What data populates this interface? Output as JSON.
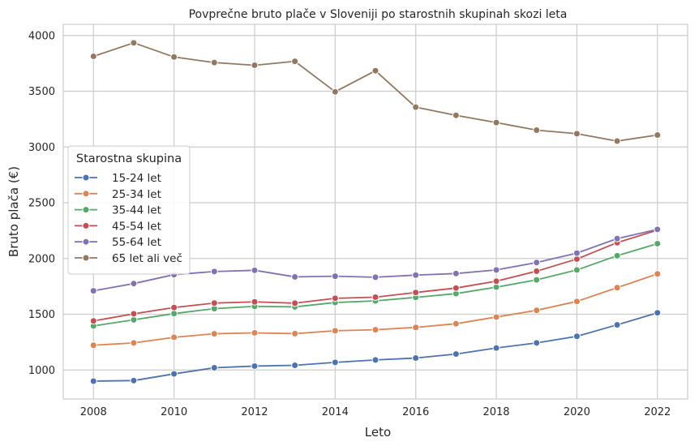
{
  "chart_data": {
    "type": "line",
    "title": "Povprečne bruto plače v Sloveniji po starostnih skupinah skozi leta",
    "xlabel": "Leto",
    "ylabel": "Bruto plača (€)",
    "xlim": [
      2007.25,
      2022.75
    ],
    "ylim": [
      740,
      4100
    ],
    "x_ticks": [
      2008,
      2010,
      2012,
      2014,
      2016,
      2018,
      2020,
      2022
    ],
    "y_ticks": [
      1000,
      1500,
      2000,
      2500,
      3000,
      3500,
      4000
    ],
    "grid": true,
    "legend": {
      "title": "Starostna skupina",
      "placement": "center-left"
    },
    "x": [
      2008,
      2009,
      2010,
      2011,
      2012,
      2013,
      2014,
      2015,
      2016,
      2017,
      2018,
      2019,
      2020,
      2021,
      2022
    ],
    "series": [
      {
        "name": "15-24 let",
        "color": "#4c72b0",
        "values": [
          900,
          905,
          965,
          1020,
          1035,
          1042,
          1068,
          1090,
          1107,
          1143,
          1197,
          1243,
          1302,
          1405,
          1513
        ]
      },
      {
        "name": "25-34 let",
        "color": "#dd8452",
        "values": [
          1222,
          1243,
          1293,
          1325,
          1333,
          1326,
          1352,
          1361,
          1382,
          1415,
          1475,
          1535,
          1615,
          1738,
          1862
        ]
      },
      {
        "name": "35-44 let",
        "color": "#55a868",
        "values": [
          1395,
          1450,
          1506,
          1550,
          1571,
          1566,
          1605,
          1620,
          1651,
          1685,
          1743,
          1808,
          1897,
          2025,
          2133
        ]
      },
      {
        "name": "45-54 let",
        "color": "#c44e52",
        "values": [
          1440,
          1504,
          1560,
          1600,
          1611,
          1599,
          1643,
          1653,
          1695,
          1735,
          1796,
          1886,
          1995,
          2142,
          2254
        ]
      },
      {
        "name": "55-64 let",
        "color": "#8172b3",
        "values": [
          1710,
          1775,
          1855,
          1883,
          1894,
          1835,
          1841,
          1832,
          1851,
          1865,
          1897,
          1964,
          2048,
          2178,
          2261
        ]
      },
      {
        "name": "65 let ali več",
        "color": "#937860",
        "values": [
          3813,
          3934,
          3807,
          3757,
          3733,
          3768,
          3495,
          3684,
          3357,
          3284,
          3219,
          3151,
          3119,
          3053,
          3107
        ]
      }
    ]
  }
}
